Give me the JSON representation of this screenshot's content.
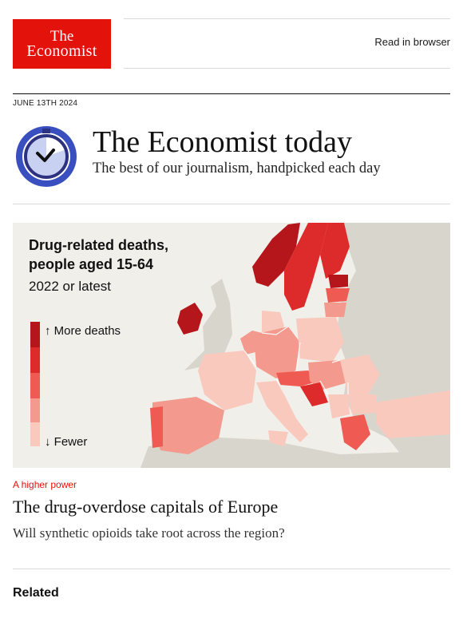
{
  "header": {
    "logo_line1": "The",
    "logo_line2": "Economist",
    "read_in_browser": "Read in browser",
    "brand_red": "#e3120b"
  },
  "issue": {
    "date": "JUNE 13TH 2024",
    "title": "The Economist today",
    "subtitle": "The best of our journalism, handpicked each day",
    "icon": "stopwatch-icon"
  },
  "map_figure": {
    "title_line1": "Drug-related deaths,",
    "title_line2": "people aged 15-64",
    "subtitle": "2022 or latest",
    "legend_top": "↑ More deaths",
    "legend_bottom": "↓ Fewer",
    "legend_colors": [
      "#b5161b",
      "#dd2a2a",
      "#ef5b52",
      "#f3998d",
      "#f9c9be"
    ]
  },
  "article": {
    "kicker": "A higher power",
    "headline": "The drug-overdose capitals of Europe",
    "standfirst": "Will synthetic opioids take root across the region?"
  },
  "related": {
    "heading": "Related"
  }
}
